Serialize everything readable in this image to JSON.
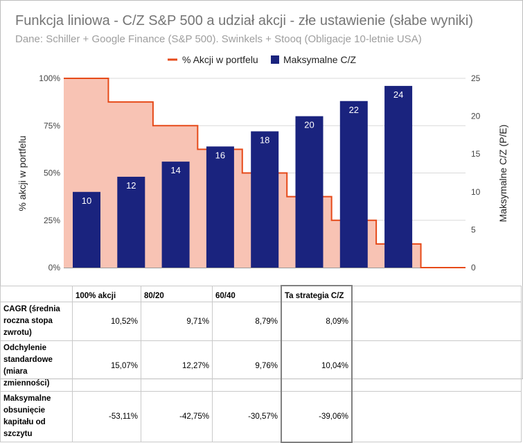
{
  "chart_data": {
    "type": "bar",
    "title": "Funkcja liniowa - C/Z S&P 500 a udział akcji - złe ustawienie (słabe wyniki)",
    "subtitle": "Dane: Schiller + Google Finance (S&P 500). Swinkels + Stooq (Obligacje 10-letnie USA)",
    "y_left_label": "% akcji w portfelu",
    "y_right_label": "Maksymalne C/Z (P/E)",
    "y_left_ticks": [
      "0%",
      "25%",
      "50%",
      "75%",
      "100%"
    ],
    "y_right_ticks": [
      "0",
      "5",
      "10",
      "15",
      "20",
      "25"
    ],
    "y_left_lim": [
      0,
      100
    ],
    "y_right_lim": [
      0,
      25
    ],
    "grid": true,
    "legend_position": "top",
    "series": [
      {
        "name": "% Akcji w portfelu",
        "type": "stepped-area",
        "color": "#e64a19",
        "fill": "#f8c3b4",
        "values": [
          100,
          87.5,
          75,
          62.5,
          50,
          37.5,
          25,
          12.5,
          0
        ]
      },
      {
        "name": "Maksymalne C/Z",
        "type": "bar",
        "axis": "right",
        "color": "#1a237e",
        "values": [
          10,
          12,
          14,
          16,
          18,
          20,
          22,
          24
        ]
      }
    ]
  },
  "table": {
    "headers": [
      "",
      "100% akcji",
      "80/20",
      "60/40",
      "Ta strategia C/Z"
    ],
    "rows": [
      {
        "label": "CAGR (średnia roczna stopa zwrotu)",
        "values": [
          "10,52%",
          "9,71%",
          "8,79%",
          "8,09%"
        ]
      },
      {
        "label": "Odchylenie standardowe (miara zmienności)",
        "values": [
          "15,07%",
          "12,27%",
          "9,76%",
          "10,04%"
        ]
      },
      {
        "label": "Maksymalne obsunięcie kapitału od szczytu",
        "values": [
          "-53,11%",
          "-42,75%",
          "-30,57%",
          "-39,06%"
        ]
      }
    ]
  }
}
